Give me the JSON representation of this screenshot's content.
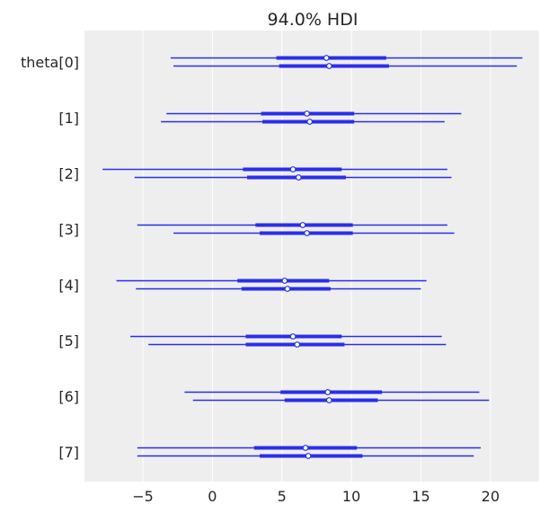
{
  "chart_data": {
    "type": "forest",
    "title": "94.0% HDI",
    "xlim": [
      -9.2,
      23.5
    ],
    "x_ticks": [
      -5,
      0,
      5,
      10,
      15,
      20
    ],
    "x_tick_labels": [
      "−5",
      "0",
      "5",
      "10",
      "15",
      "20"
    ],
    "grid": true,
    "colors": {
      "series": "#2a2eec",
      "background": "#eeeeee",
      "grid": "#ffffff",
      "text": "#262626"
    },
    "rows": [
      {
        "label": "theta[0]",
        "chains": [
          {
            "hdi": [
              -3.0,
              22.3
            ],
            "iqr": [
              4.6,
              12.5
            ],
            "median": 8.2
          },
          {
            "hdi": [
              -2.8,
              21.9
            ],
            "iqr": [
              4.8,
              12.7
            ],
            "median": 8.4
          }
        ]
      },
      {
        "label": "[1]",
        "chains": [
          {
            "hdi": [
              -3.3,
              17.9
            ],
            "iqr": [
              3.5,
              10.2
            ],
            "median": 6.8
          },
          {
            "hdi": [
              -3.7,
              16.7
            ],
            "iqr": [
              3.6,
              10.2
            ],
            "median": 7.0
          }
        ]
      },
      {
        "label": "[2]",
        "chains": [
          {
            "hdi": [
              -7.9,
              16.9
            ],
            "iqr": [
              2.2,
              9.3
            ],
            "median": 5.8
          },
          {
            "hdi": [
              -5.6,
              17.2
            ],
            "iqr": [
              2.5,
              9.6
            ],
            "median": 6.2
          }
        ]
      },
      {
        "label": "[3]",
        "chains": [
          {
            "hdi": [
              -5.4,
              16.9
            ],
            "iqr": [
              3.1,
              10.1
            ],
            "median": 6.5
          },
          {
            "hdi": [
              -2.8,
              17.4
            ],
            "iqr": [
              3.4,
              10.1
            ],
            "median": 6.8
          }
        ]
      },
      {
        "label": "[4]",
        "chains": [
          {
            "hdi": [
              -6.9,
              15.4
            ],
            "iqr": [
              1.8,
              8.4
            ],
            "median": 5.2
          },
          {
            "hdi": [
              -5.5,
              15.0
            ],
            "iqr": [
              2.1,
              8.5
            ],
            "median": 5.4
          }
        ]
      },
      {
        "label": "[5]",
        "chains": [
          {
            "hdi": [
              -5.9,
              16.5
            ],
            "iqr": [
              2.4,
              9.3
            ],
            "median": 5.8
          },
          {
            "hdi": [
              -4.6,
              16.8
            ],
            "iqr": [
              2.4,
              9.5
            ],
            "median": 6.1
          }
        ]
      },
      {
        "label": "[6]",
        "chains": [
          {
            "hdi": [
              -2.0,
              19.2
            ],
            "iqr": [
              4.9,
              12.2
            ],
            "median": 8.3
          },
          {
            "hdi": [
              -1.4,
              19.9
            ],
            "iqr": [
              5.2,
              11.9
            ],
            "median": 8.4
          }
        ]
      },
      {
        "label": "[7]",
        "chains": [
          {
            "hdi": [
              -5.4,
              19.3
            ],
            "iqr": [
              3.0,
              10.4
            ],
            "median": 6.7
          },
          {
            "hdi": [
              -5.4,
              18.8
            ],
            "iqr": [
              3.4,
              10.8
            ],
            "median": 6.9
          }
        ]
      }
    ]
  }
}
